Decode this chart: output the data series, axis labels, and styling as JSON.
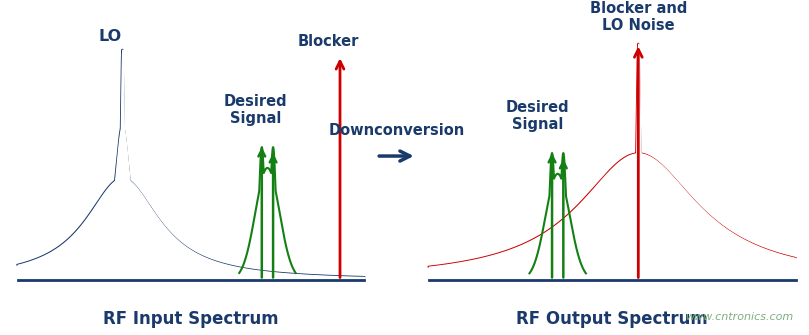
{
  "title_left": "RF Input Spectrum",
  "title_right": "RF Output Spectrum",
  "label_LO": "LO",
  "label_blocker_left": "Blocker",
  "label_desired_left": "Desired\nSignal",
  "label_blocker_right": "Blocker and\nLO Noise",
  "label_desired_right": "Desired\nSignal",
  "label_downconversion": "Downconversion",
  "color_dark_blue": "#1a3a6b",
  "color_red": "#cc0000",
  "color_green": "#148014",
  "color_watermark": "#7faf7f",
  "watermark": "www.cntronics.com",
  "bg_color": "#ffffff",
  "fontsize_label": 10.5,
  "fontsize_title": 12,
  "fontsize_watermark": 8
}
